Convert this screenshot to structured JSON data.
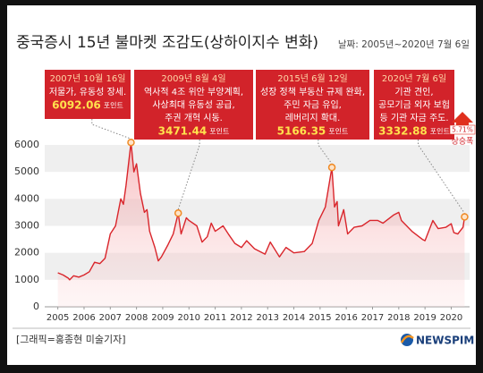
{
  "chart_data": {
    "type": "line",
    "title": "중국증시 15년 불마켓 조감도(상하이지수 변화)",
    "subtitle": "날짜: 2005년~2020년 7월 6일",
    "credit": "[그래픽=홍종현 미술기자]",
    "brand": "NEWSPIM",
    "x": [
      2005.0,
      2005.2,
      2005.4,
      2005.45,
      2005.6,
      2005.8,
      2006.0,
      2006.2,
      2006.4,
      2006.6,
      2006.8,
      2007.0,
      2007.2,
      2007.4,
      2007.5,
      2007.6,
      2007.79,
      2007.9,
      2008.0,
      2008.15,
      2008.3,
      2008.4,
      2008.5,
      2008.7,
      2008.83,
      2008.95,
      2009.2,
      2009.4,
      2009.59,
      2009.7,
      2009.9,
      2010.0,
      2010.3,
      2010.5,
      2010.7,
      2010.85,
      2011.0,
      2011.3,
      2011.5,
      2011.75,
      2012.0,
      2012.2,
      2012.5,
      2012.9,
      2013.1,
      2013.45,
      2013.7,
      2014.0,
      2014.4,
      2014.7,
      2014.95,
      2015.2,
      2015.45,
      2015.55,
      2015.65,
      2015.7,
      2015.9,
      2016.05,
      2016.3,
      2016.6,
      2016.9,
      2017.2,
      2017.4,
      2017.8,
      2018.0,
      2018.1,
      2018.5,
      2018.9,
      2019.0,
      2019.3,
      2019.5,
      2019.8,
      2020.0,
      2020.1,
      2020.25,
      2020.45,
      2020.51
    ],
    "series": [
      {
        "color": "#d9252b",
        "values": [
          1260,
          1180,
          1060,
          1000,
          1150,
          1100,
          1180,
          1300,
          1650,
          1600,
          1800,
          2700,
          3000,
          4000,
          3800,
          4500,
          6092.06,
          5000,
          5300,
          4200,
          3500,
          3600,
          2800,
          2200,
          1700,
          1850,
          2300,
          2700,
          3471.44,
          2700,
          3300,
          3200,
          3000,
          2400,
          2600,
          3100,
          2800,
          3000,
          2700,
          2350,
          2200,
          2450,
          2150,
          1950,
          2400,
          1850,
          2200,
          2000,
          2050,
          2350,
          3200,
          3700,
          5166.35,
          3700,
          3900,
          3000,
          3600,
          2700,
          2950,
          3000,
          3200,
          3200,
          3100,
          3400,
          3500,
          3200,
          2800,
          2500,
          2450,
          3200,
          2900,
          2950,
          3080,
          2750,
          2700,
          2950,
          3332.88
        ]
      }
    ],
    "xlim": [
      2004.5,
      2020.7
    ],
    "xticks": [
      2005,
      2006,
      2007,
      2008,
      2009,
      2010,
      2011,
      2012,
      2013,
      2014,
      2015,
      2016,
      2017,
      2018,
      2019,
      2020
    ],
    "ylim": [
      0,
      6000
    ],
    "yticks": [
      0,
      1000,
      2000,
      3000,
      4000,
      5000,
      6000
    ],
    "grid": "bands",
    "annotations": [
      {
        "date": "2007년 10월 16일",
        "lines": [
          "저물가, 유동성 장세."
        ],
        "value": 6092.06,
        "unit": "포인트",
        "x": 2007.79
      },
      {
        "date": "2009년 8월 4일",
        "lines": [
          "역사적 4조 위안 부양계획,",
          "사상최대 유동성 공급,",
          "주권 개혁 시동."
        ],
        "value": 3471.44,
        "unit": "포인트",
        "x": 2009.59
      },
      {
        "date": "2015년 6월 12일",
        "lines": [
          "성장 정책 부동산 규제 완화,",
          "주민 자금 유입,",
          "레버리지 확대."
        ],
        "value": 5166.35,
        "unit": "포인트",
        "x": 2015.45
      },
      {
        "date": "2020년 7월 6일",
        "lines": [
          "기관 견인,",
          "공모기금 외자 보험",
          "등 기관 자금 주도."
        ],
        "value": 3332.88,
        "unit": "포인트",
        "x": 2020.51
      }
    ],
    "growth": {
      "value": 5.71,
      "label": "5.71%",
      "caption": "상승폭"
    }
  }
}
